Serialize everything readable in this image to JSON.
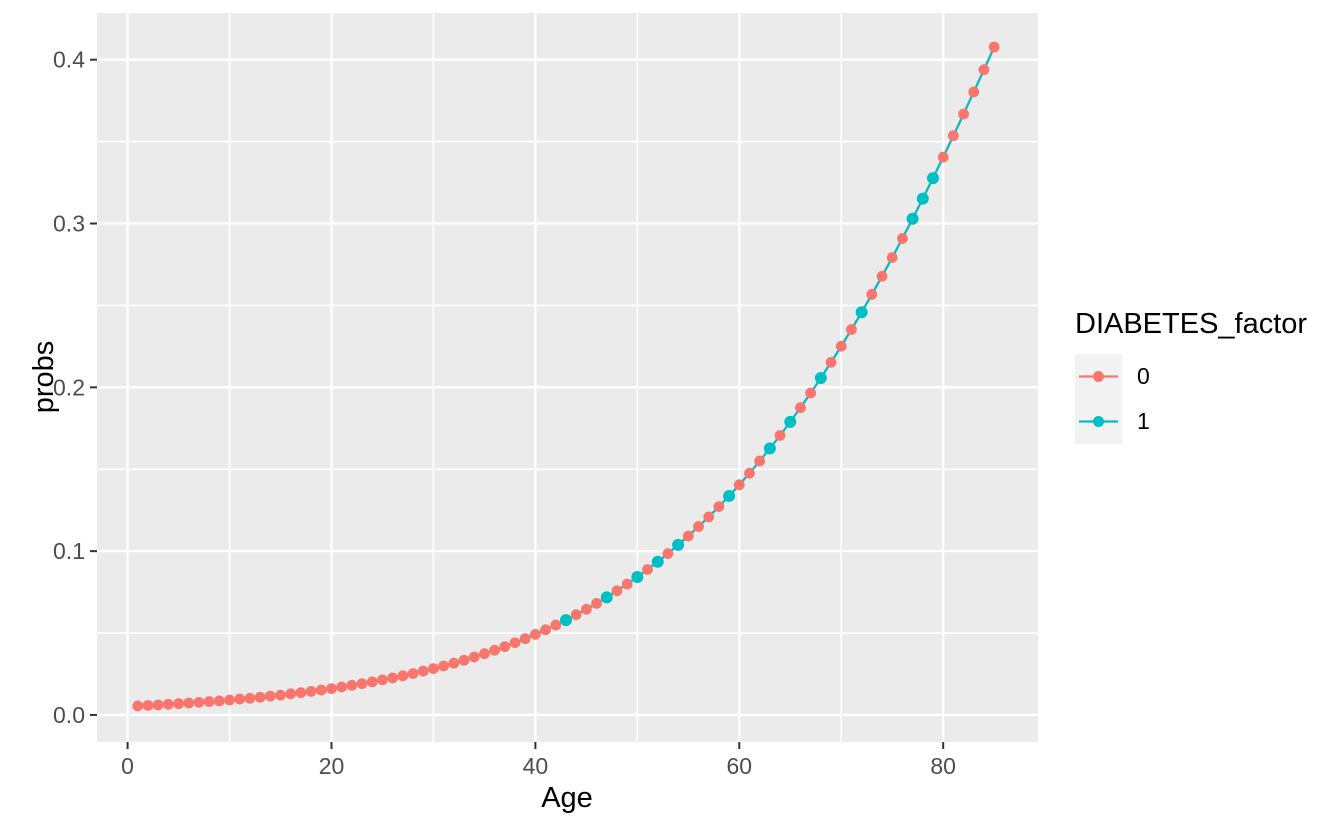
{
  "chart_data": {
    "type": "line",
    "title": "",
    "xlabel": "Age",
    "ylabel": "probs",
    "x": [
      1,
      2,
      3,
      4,
      5,
      6,
      7,
      8,
      9,
      10,
      11,
      12,
      13,
      14,
      15,
      16,
      17,
      18,
      19,
      20,
      21,
      22,
      23,
      24,
      25,
      26,
      27,
      28,
      29,
      30,
      31,
      32,
      33,
      34,
      35,
      36,
      37,
      38,
      39,
      40,
      41,
      42,
      43,
      44,
      45,
      46,
      47,
      48,
      49,
      50,
      51,
      52,
      53,
      54,
      55,
      56,
      57,
      58,
      59,
      60,
      61,
      62,
      63,
      64,
      65,
      66,
      67,
      68,
      69,
      70,
      71,
      72,
      73,
      74,
      75,
      76,
      77,
      78,
      79,
      80,
      81,
      82,
      83,
      84,
      85
    ],
    "series": [
      {
        "name": "0",
        "color": "#F8766D",
        "values": [
          0.0055,
          0.0058,
          0.0061,
          0.0065,
          0.0069,
          0.0073,
          0.0077,
          0.0082,
          0.0086,
          0.0091,
          0.0097,
          0.0102,
          0.0108,
          0.0115,
          0.0121,
          0.0129,
          0.0136,
          0.0144,
          0.0152,
          0.0161,
          0.0171,
          0.0181,
          0.0191,
          0.0202,
          0.0214,
          0.0226,
          0.0239,
          0.0253,
          0.0268,
          0.0283,
          0.0299,
          0.0316,
          0.0334,
          0.0354,
          0.0374,
          0.0395,
          0.0417,
          0.0441,
          0.0466,
          0.0492,
          0.052,
          0.0549,
          0.0579,
          0.0612,
          0.0645,
          0.0681,
          0.0718,
          0.0758,
          0.0799,
          0.0842,
          0.0888,
          0.0935,
          0.0985,
          0.1038,
          0.1092,
          0.115,
          0.1209,
          0.1272,
          0.1337,
          0.1405,
          0.1476,
          0.155,
          0.1627,
          0.1706,
          0.1789,
          0.1876,
          0.1965,
          0.2057,
          0.2153,
          0.2251,
          0.2353,
          0.2458,
          0.2567,
          0.2678,
          0.2792,
          0.2909,
          0.3029,
          0.3152,
          0.3277,
          0.3405,
          0.3536,
          0.3668,
          0.3803,
          0.3939,
          0.4077
        ]
      },
      {
        "name": "1",
        "color": "#00BFC4",
        "values": [
          0.0055,
          0.0058,
          0.0061,
          0.0065,
          0.0069,
          0.0073,
          0.0077,
          0.0082,
          0.0086,
          0.0091,
          0.0097,
          0.0102,
          0.0108,
          0.0115,
          0.0121,
          0.0129,
          0.0136,
          0.0144,
          0.0152,
          0.0161,
          0.0171,
          0.0181,
          0.0191,
          0.0202,
          0.0214,
          0.0226,
          0.0239,
          0.0253,
          0.0268,
          0.0283,
          0.0299,
          0.0316,
          0.0334,
          0.0354,
          0.0374,
          0.0395,
          0.0417,
          0.0441,
          0.0466,
          0.0492,
          0.052,
          0.0549,
          0.0579,
          0.0612,
          0.0645,
          0.0681,
          0.0718,
          0.0758,
          0.0799,
          0.0842,
          0.0888,
          0.0935,
          0.0985,
          0.1038,
          0.1092,
          0.115,
          0.1209,
          0.1272,
          0.1337,
          0.1405,
          0.1476,
          0.155,
          0.1627,
          0.1706,
          0.1789,
          0.1876,
          0.1965,
          0.2057,
          0.2153,
          0.2251,
          0.2353,
          0.2458,
          0.2567,
          0.2678,
          0.2792,
          0.2909,
          0.3029,
          0.3152,
          0.3277,
          0.3405,
          0.3536,
          0.3668,
          0.3803,
          0.3939,
          0.4077
        ]
      }
    ],
    "legend": {
      "title": "DIABETES_factor",
      "position": "right",
      "key_fill": "#F2F2F2",
      "entries": [
        "0",
        "1"
      ]
    },
    "axes": {
      "x": {
        "ticks": [
          0,
          20,
          40,
          60,
          80
        ],
        "tick_labels": [
          "0",
          "20",
          "40",
          "60",
          "80"
        ],
        "minor": [
          10,
          30,
          50,
          70
        ],
        "lim": [
          -3,
          89.3
        ]
      },
      "y": {
        "ticks": [
          0,
          0.1,
          0.2,
          0.3,
          0.4
        ],
        "tick_labels": [
          "0.0",
          "0.1",
          "0.2",
          "0.3",
          "0.4"
        ],
        "minor": [
          0.05,
          0.15,
          0.25,
          0.35
        ],
        "lim": [
          -0.0165,
          0.4285
        ]
      }
    },
    "style": {
      "panel_fill": "#EBEBEB",
      "grid_color": "#FFFFFF",
      "tick_mark_color": "#333333",
      "tick_label_color": "#4D4D4D",
      "axis_title_color": "#000000",
      "grid_on": true
    },
    "z_order_note": "series 0 points drawn on top except at listed ages where series 1 points are visible",
    "series1_points_visible_at_ages": [
      43,
      47,
      50,
      52,
      54,
      59,
      63,
      65,
      68,
      72,
      77,
      78,
      79
    ]
  }
}
